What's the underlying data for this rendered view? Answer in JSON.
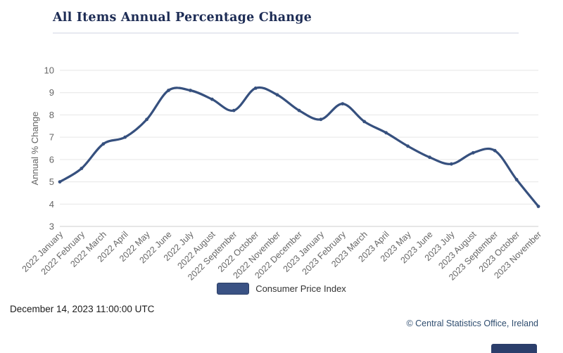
{
  "header": {
    "title": "All Items Annual Percentage Change"
  },
  "chart_data": {
    "type": "line",
    "title": "All Items Annual Percentage Change",
    "xlabel": "",
    "ylabel": "Annual % Change",
    "ylim": [
      3,
      10
    ],
    "y_ticks": [
      3,
      4,
      5,
      6,
      7,
      8,
      9,
      10
    ],
    "grid": true,
    "legend_position": "bottom-center",
    "categories": [
      "2022 January",
      "2022 February",
      "2022 March",
      "2022 April",
      "2022 May",
      "2022 June",
      "2022 July",
      "2022 August",
      "2022 September",
      "2022 October",
      "2022 November",
      "2022 December",
      "2023 January",
      "2023 February",
      "2023 March",
      "2023 April",
      "2023 May",
      "2023 June",
      "2023 July",
      "2023 August",
      "2023 September",
      "2023 October",
      "2023 November"
    ],
    "series": [
      {
        "name": "Consumer Price Index",
        "color": "#36507e",
        "values": [
          5.0,
          5.6,
          6.7,
          7.0,
          7.8,
          9.1,
          9.1,
          8.7,
          8.2,
          9.2,
          8.9,
          8.2,
          7.8,
          8.5,
          7.7,
          7.2,
          6.6,
          6.1,
          5.8,
          6.3,
          6.4,
          5.1,
          3.9
        ]
      }
    ]
  },
  "legend": {
    "label": "Consumer Price Index",
    "swatch_color": "#3a5284"
  },
  "footer": {
    "timestamp": "December 14, 2023 11:00:00 UTC",
    "copyright": "© Central Statistics Office, Ireland"
  },
  "colors": {
    "title_text": "#1d2c55",
    "grid": "#e6e6e6",
    "axis_line": "#cccccc",
    "axis_text": "#666666",
    "line": "#36507e",
    "copyright_text": "#2f4d6f"
  }
}
